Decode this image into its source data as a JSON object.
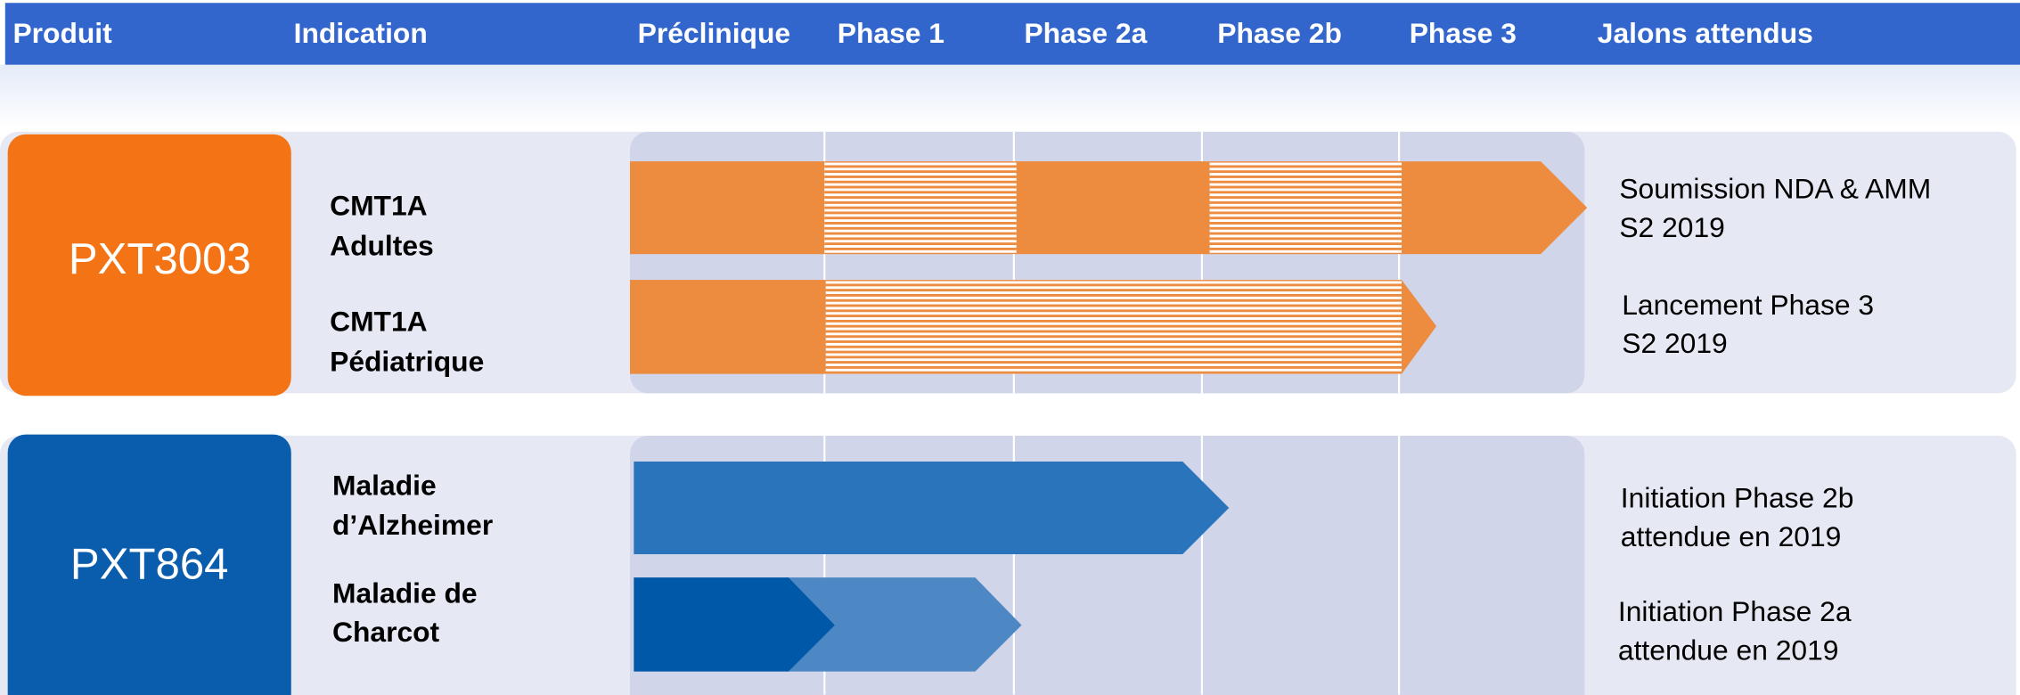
{
  "header": {
    "columns": [
      "Produit",
      "Indication",
      "Préclinique",
      "Phase 1",
      "Phase 2a",
      "Phase 2b",
      "Phase 3",
      "Jalons attendus"
    ]
  },
  "products": [
    {
      "name": "PXT3003",
      "indications": [
        {
          "lines": [
            "CMT1A",
            "Adultes"
          ],
          "milestone": [
            "Soumission NDA & AMM",
            "S2 2019"
          ]
        },
        {
          "lines": [
            "CMT1A",
            "Pédiatrique"
          ],
          "milestone": [
            "Lancement Phase 3",
            "S2 2019"
          ]
        }
      ]
    },
    {
      "name": "PXT864",
      "indications": [
        {
          "lines": [
            "Maladie",
            "d’Alzheimer"
          ],
          "milestone": [
            "Initiation Phase 2b",
            "attendue en 2019"
          ]
        },
        {
          "lines": [
            "Maladie de",
            "Charcot"
          ],
          "milestone": [
            "Initiation Phase 2a",
            "attendue en 2019"
          ]
        }
      ]
    }
  ]
}
